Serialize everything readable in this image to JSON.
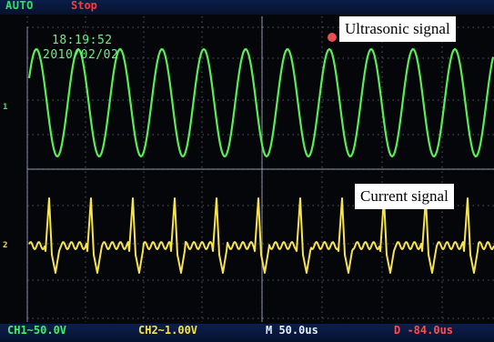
{
  "window": {
    "mode": "AUTO",
    "run_state": "Stop"
  },
  "overlay": {
    "time": "18:19:52",
    "date": "2010/02/02"
  },
  "annotations": {
    "ch1": "Ultrasonic signal",
    "ch2": "Current signal"
  },
  "status_bar": {
    "ch1_scale": "CH1~50.0V",
    "ch2_scale": "CH2~1.00V",
    "timebase": "M 50.0us",
    "delay": "D -84.0us"
  },
  "markers": {
    "ch1": "1",
    "ch2": "2"
  },
  "colors": {
    "ch1_trace": "#58ef52",
    "ch2_trace": "#f7e34f",
    "grid": "#9aa3b7",
    "background": "#05060a",
    "status_bar": "#0a1e4a"
  }
}
